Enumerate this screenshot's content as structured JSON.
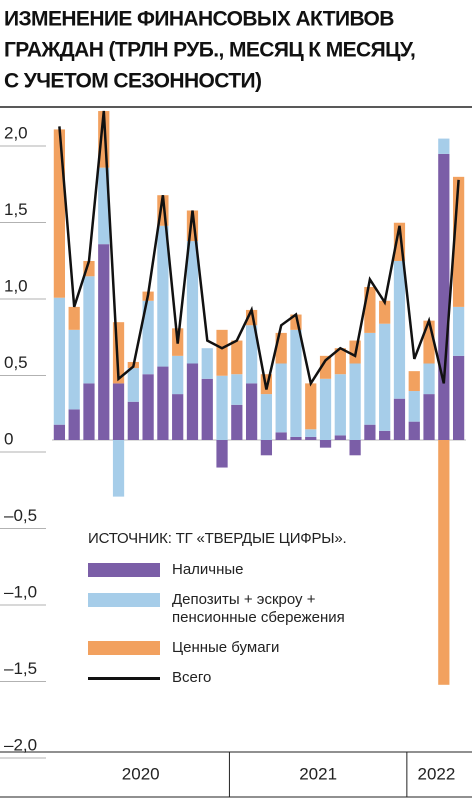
{
  "chart_data": {
    "type": "stacked-bar-line",
    "title": [
      "ИЗМЕНЕНИЕ ФИНАНСОВЫХ АКТИВОВ",
      "ГРАЖДАН (ТРЛН РУБ., МЕСЯЦ К МЕСЯЦУ,",
      "С УЧЕТОМ СЕЗОННОСТИ)"
    ],
    "source": "ИСТОЧНИК: ТГ «ТВЕРДЫЕ ЦИФРЫ».",
    "categories": [
      null,
      null,
      null,
      null,
      null,
      null,
      null,
      null,
      null,
      null,
      null,
      null,
      null,
      null,
      null,
      null,
      null,
      null,
      null,
      null,
      null,
      null,
      null,
      null,
      null,
      null,
      null,
      null
    ],
    "year_labels": [
      {
        "label": "2020",
        "count": 12
      },
      {
        "label": "2021",
        "count": 12
      },
      {
        "label": "2022",
        "count": 4
      }
    ],
    "series": [
      {
        "name": "Наличные",
        "color": "#7b5ea7",
        "values": [
          0.1,
          0.2,
          0.37,
          1.28,
          0.37,
          0.25,
          0.43,
          0.48,
          0.3,
          0.5,
          0.4,
          -0.18,
          0.23,
          0.37,
          -0.1,
          0.05,
          0.02,
          0.02,
          -0.05,
          0.03,
          -0.1,
          0.1,
          0.06,
          0.27,
          0.12,
          0.3,
          1.87,
          0.55
        ]
      },
      {
        "name": "Депозиты + эскроу + пенсионные сбережения",
        "color": "#a6cde9",
        "values": [
          0.83,
          0.52,
          0.7,
          0.5,
          -0.37,
          0.22,
          0.48,
          0.92,
          0.25,
          0.8,
          0.2,
          0.42,
          0.2,
          0.38,
          0.3,
          0.45,
          0.7,
          0.05,
          0.4,
          0.4,
          0.5,
          0.6,
          0.7,
          0.9,
          0.2,
          0.2,
          0.1,
          0.32
        ]
      },
      {
        "name": "Ценные бумаги",
        "color": "#f2a15f",
        "values": [
          1.1,
          0.15,
          0.1,
          0.37,
          0.4,
          0.04,
          0.06,
          0.2,
          0.18,
          0.2,
          0,
          0.3,
          0.22,
          0.1,
          0.13,
          0.2,
          0.1,
          0.3,
          0.15,
          0.17,
          0.15,
          0.3,
          0.15,
          0.25,
          0.13,
          0.28,
          -1.6,
          0.85
        ]
      },
      {
        "name": "Всего",
        "color": "#111111",
        "type": "line",
        "values": [
          2.05,
          0.87,
          1.17,
          2.15,
          0.4,
          0.48,
          0.95,
          1.6,
          0.63,
          1.5,
          0.65,
          0.6,
          0.65,
          0.85,
          0.33,
          0.75,
          0.82,
          0.37,
          0.52,
          0.6,
          0.55,
          1.05,
          0.9,
          1.4,
          0.53,
          0.78,
          0.37,
          1.7
        ]
      }
    ],
    "ylim": [
      -2,
      2
    ],
    "yticks": [
      {
        "value": 2,
        "label": "2,0"
      },
      {
        "value": 1.5,
        "label": "1,5"
      },
      {
        "value": 1,
        "label": "1,0"
      },
      {
        "value": 0.5,
        "label": "0,5"
      },
      0,
      {
        "value": -0.5,
        "label": "–0,5"
      },
      {
        "value": -1,
        "label": "–1,0"
      },
      {
        "value": -1.5,
        "label": "–1,5"
      },
      {
        "value": -2,
        "label": "–2,0"
      }
    ]
  }
}
